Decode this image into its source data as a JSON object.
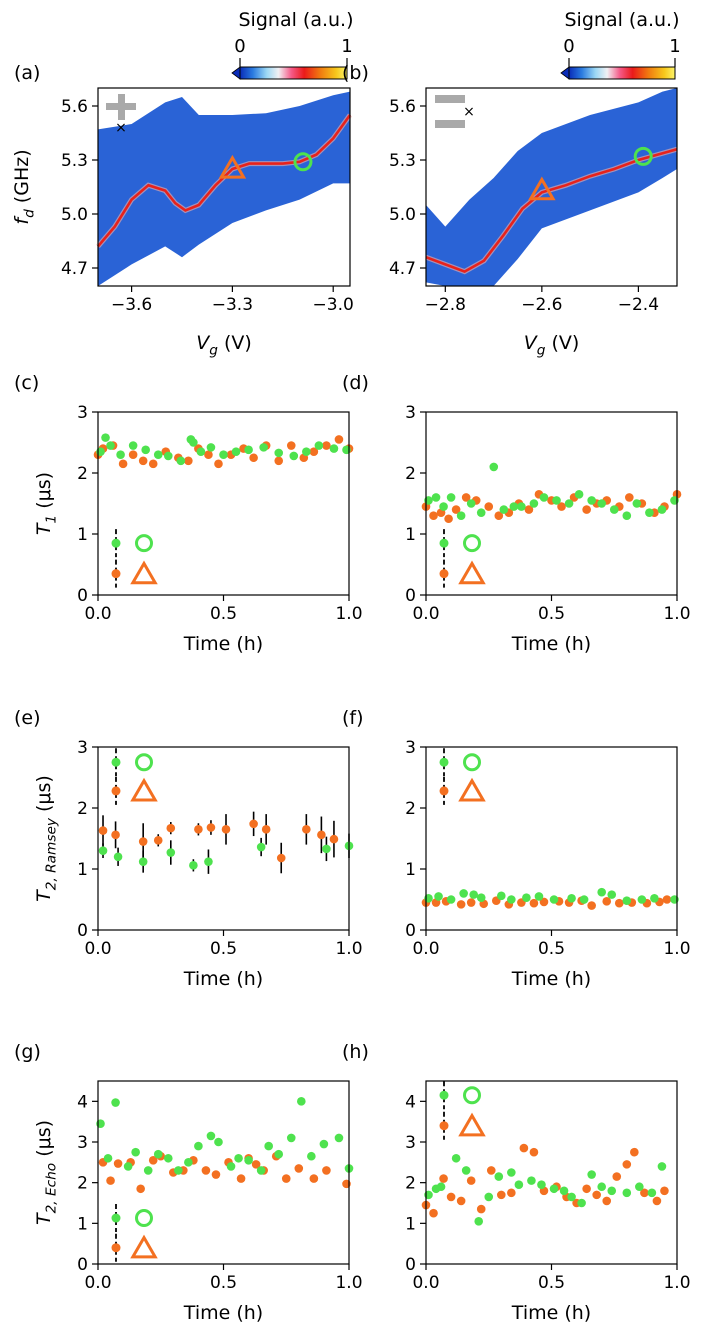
{
  "colors": {
    "green": "#4ee24e",
    "orange": "#f37021",
    "map_bg": "#2a63d6",
    "trace": "#e8221b",
    "gray": "#a9a9a9"
  },
  "colorbar": {
    "title": "Signal (a.u.)",
    "ticks": [
      "0",
      "1"
    ]
  },
  "chart_data": [
    {
      "id": "a",
      "panel_label": "(a)",
      "type": "heatmap",
      "xlabel_main": "V",
      "xlabel_sub": "g",
      "xlabel_unit": " (V)",
      "ylabel_main": "f",
      "ylabel_sub": "d",
      "ylabel_unit": " (GHz)",
      "xlim": [
        -3.7,
        -2.95
      ],
      "ylim": [
        4.6,
        5.7
      ],
      "xticks": [
        -3.6,
        -3.3,
        -3.0
      ],
      "xtick_labels": [
        "−3.6",
        "−3.3",
        "−3.0"
      ],
      "yticks": [
        4.7,
        5.0,
        5.3,
        5.6
      ],
      "ytick_labels": [
        "4.7",
        "5.0",
        "5.3",
        "5.6"
      ],
      "band_x": [
        -3.7,
        -3.6,
        -3.5,
        -3.45,
        -3.4,
        -3.3,
        -3.2,
        -3.1,
        -3.0,
        -2.95
      ],
      "band_lo": [
        4.6,
        4.72,
        4.82,
        4.76,
        4.83,
        4.95,
        5.02,
        5.08,
        5.17,
        5.17
      ],
      "band_hi": [
        5.47,
        5.5,
        5.62,
        5.65,
        5.55,
        5.55,
        5.56,
        5.6,
        5.66,
        5.68
      ],
      "trace_x": [
        -3.7,
        -3.65,
        -3.6,
        -3.55,
        -3.5,
        -3.47,
        -3.44,
        -3.4,
        -3.35,
        -3.3,
        -3.25,
        -3.2,
        -3.15,
        -3.1,
        -3.05,
        -3.0,
        -2.95
      ],
      "trace_y": [
        4.82,
        4.93,
        5.08,
        5.16,
        5.13,
        5.06,
        5.02,
        5.05,
        5.16,
        5.25,
        5.28,
        5.28,
        5.28,
        5.29,
        5.33,
        5.42,
        5.55
      ],
      "triangle": [
        -3.3,
        5.25
      ],
      "circle": [
        -3.09,
        5.29
      ]
    },
    {
      "id": "b",
      "panel_label": "(b)",
      "type": "heatmap",
      "xlabel_main": "V",
      "xlabel_sub": "g",
      "xlabel_unit": " (V)",
      "xlim": [
        -2.84,
        -2.32
      ],
      "ylim": [
        4.6,
        5.7
      ],
      "xticks": [
        -2.8,
        -2.6,
        -2.4
      ],
      "xtick_labels": [
        "−2.8",
        "−2.6",
        "−2.4"
      ],
      "yticks": [
        4.7,
        5.0,
        5.3,
        5.6
      ],
      "ytick_labels": [
        "4.7",
        "5.0",
        "5.3",
        "5.6"
      ],
      "band_x": [
        -2.84,
        -2.8,
        -2.75,
        -2.7,
        -2.65,
        -2.6,
        -2.5,
        -2.4,
        -2.35,
        -2.32
      ],
      "band_lo": [
        4.62,
        4.6,
        4.6,
        4.6,
        4.75,
        4.92,
        5.02,
        5.12,
        5.2,
        5.25
      ],
      "band_hi": [
        5.05,
        4.93,
        5.08,
        5.2,
        5.35,
        5.45,
        5.55,
        5.62,
        5.68,
        5.7
      ],
      "trace_x": [
        -2.84,
        -2.8,
        -2.76,
        -2.72,
        -2.68,
        -2.64,
        -2.6,
        -2.55,
        -2.5,
        -2.45,
        -2.4,
        -2.36,
        -2.32
      ],
      "trace_y": [
        4.76,
        4.72,
        4.68,
        4.74,
        4.88,
        5.03,
        5.12,
        5.16,
        5.21,
        5.25,
        5.3,
        5.33,
        5.36
      ],
      "triangle": [
        -2.6,
        5.13
      ],
      "circle": [
        -2.39,
        5.32
      ]
    },
    {
      "id": "c",
      "panel_label": "(c)",
      "type": "scatter",
      "ylabel_main": "T",
      "ylabel_sub": "1",
      "ylabel_unit": " (μs)",
      "xlabel": "Time (h)",
      "xlim": [
        0,
        1
      ],
      "ylim": [
        0,
        3
      ],
      "xticks": [
        0,
        0.5,
        1
      ],
      "xtick_labels": [
        "0.0",
        "0.5",
        "1.0"
      ],
      "yticks": [
        0,
        1,
        2,
        3
      ],
      "ytick_labels": [
        "0",
        "1",
        "2",
        "3"
      ],
      "series": [
        {
          "name": "circle",
          "x": [
            0.01,
            0.03,
            0.05,
            0.09,
            0.14,
            0.19,
            0.24,
            0.28,
            0.33,
            0.37,
            0.38,
            0.41,
            0.45,
            0.5,
            0.55,
            0.6,
            0.66,
            0.72,
            0.78,
            0.83,
            0.88,
            0.94,
            0.99
          ],
          "y": [
            2.35,
            2.58,
            2.45,
            2.3,
            2.45,
            2.38,
            2.3,
            2.28,
            2.2,
            2.55,
            2.5,
            2.35,
            2.42,
            2.3,
            2.35,
            2.38,
            2.42,
            2.33,
            2.28,
            2.35,
            2.45,
            2.4,
            2.38
          ]
        },
        {
          "name": "triangle",
          "x": [
            0.0,
            0.02,
            0.06,
            0.1,
            0.14,
            0.18,
            0.22,
            0.27,
            0.32,
            0.36,
            0.4,
            0.44,
            0.48,
            0.53,
            0.58,
            0.62,
            0.67,
            0.72,
            0.77,
            0.82,
            0.86,
            0.91,
            0.96,
            1.0
          ],
          "y": [
            2.3,
            2.4,
            2.45,
            2.15,
            2.3,
            2.2,
            2.15,
            2.35,
            2.25,
            2.2,
            2.4,
            2.3,
            2.15,
            2.3,
            2.4,
            2.25,
            2.45,
            2.2,
            2.45,
            2.25,
            2.35,
            2.45,
            2.55,
            2.4
          ]
        }
      ],
      "legend": {
        "circle_y": 0.85,
        "triangle_y": 0.35
      }
    },
    {
      "id": "d",
      "panel_label": "(d)",
      "type": "scatter",
      "xlabel": "Time (h)",
      "xlim": [
        0,
        1
      ],
      "ylim": [
        0,
        3
      ],
      "xticks": [
        0,
        0.5,
        1
      ],
      "xtick_labels": [
        "0.0",
        "0.5",
        "1.0"
      ],
      "yticks": [
        0,
        1,
        2,
        3
      ],
      "ytick_labels": [
        "0",
        "1",
        "2",
        "3"
      ],
      "series": [
        {
          "name": "circle",
          "x": [
            0.01,
            0.04,
            0.07,
            0.1,
            0.14,
            0.18,
            0.22,
            0.27,
            0.31,
            0.35,
            0.38,
            0.43,
            0.47,
            0.52,
            0.57,
            0.61,
            0.66,
            0.7,
            0.75,
            0.8,
            0.84,
            0.89,
            0.94,
            0.99
          ],
          "y": [
            1.55,
            1.6,
            1.45,
            1.6,
            1.3,
            1.5,
            1.35,
            2.1,
            1.4,
            1.45,
            1.45,
            1.5,
            1.6,
            1.55,
            1.5,
            1.65,
            1.55,
            1.5,
            1.4,
            1.3,
            1.5,
            1.35,
            1.4,
            1.55
          ]
        },
        {
          "name": "triangle",
          "x": [
            0.0,
            0.03,
            0.06,
            0.09,
            0.12,
            0.16,
            0.2,
            0.25,
            0.29,
            0.33,
            0.37,
            0.41,
            0.45,
            0.5,
            0.54,
            0.59,
            0.64,
            0.68,
            0.72,
            0.77,
            0.81,
            0.86,
            0.91,
            0.95,
            1.0
          ],
          "y": [
            1.45,
            1.3,
            1.35,
            1.25,
            1.4,
            1.6,
            1.55,
            1.45,
            1.3,
            1.35,
            1.5,
            1.4,
            1.65,
            1.55,
            1.45,
            1.6,
            1.4,
            1.5,
            1.55,
            1.45,
            1.6,
            1.5,
            1.35,
            1.45,
            1.65
          ]
        }
      ],
      "legend": {
        "circle_y": 0.85,
        "triangle_y": 0.35
      }
    },
    {
      "id": "e",
      "panel_label": "(e)",
      "type": "scatter",
      "ylabel_main": "T",
      "ylabel_sub": "2, Ramsey",
      "ylabel_unit": " (μs)",
      "xlabel": "Time (h)",
      "xlim": [
        0,
        1
      ],
      "ylim": [
        0,
        3
      ],
      "xticks": [
        0,
        0.5,
        1
      ],
      "xtick_labels": [
        "0.0",
        "0.5",
        "1.0"
      ],
      "yticks": [
        0,
        1,
        2,
        3
      ],
      "ytick_labels": [
        "0",
        "1",
        "2",
        "3"
      ],
      "series": [
        {
          "name": "circle",
          "x": [
            0.02,
            0.08,
            0.18,
            0.29,
            0.38,
            0.44,
            0.65,
            0.91,
            1.0
          ],
          "y": [
            1.3,
            1.2,
            1.12,
            1.27,
            1.06,
            1.12,
            1.36,
            1.33,
            1.38
          ],
          "err": [
            0.12,
            0.15,
            0.18,
            0.2,
            0.1,
            0.2,
            0.15,
            0.2,
            0.2
          ]
        },
        {
          "name": "triangle",
          "x": [
            0.02,
            0.07,
            0.18,
            0.24,
            0.29,
            0.4,
            0.45,
            0.51,
            0.62,
            0.67,
            0.73,
            0.83,
            0.89,
            0.94
          ],
          "y": [
            1.63,
            1.56,
            1.45,
            1.47,
            1.67,
            1.65,
            1.68,
            1.65,
            1.74,
            1.65,
            1.18,
            1.65,
            1.56,
            1.49
          ],
          "err": [
            0.25,
            0.22,
            0.3,
            0.1,
            0.1,
            0.1,
            0.12,
            0.25,
            0.2,
            0.25,
            0.25,
            0.25,
            0.3,
            0.3
          ]
        }
      ],
      "legend": {
        "circle_y": 2.75,
        "triangle_y": 2.28
      }
    },
    {
      "id": "f",
      "panel_label": "(f)",
      "type": "scatter",
      "xlabel": "Time (h)",
      "xlim": [
        0,
        1
      ],
      "ylim": [
        0,
        3
      ],
      "xticks": [
        0,
        0.5,
        1
      ],
      "xtick_labels": [
        "0.0",
        "0.5",
        "1.0"
      ],
      "yticks": [
        0,
        1,
        2,
        3
      ],
      "ytick_labels": [
        "0",
        "1",
        "2",
        "3"
      ],
      "series": [
        {
          "name": "circle",
          "x": [
            0.01,
            0.05,
            0.1,
            0.15,
            0.19,
            0.22,
            0.3,
            0.34,
            0.4,
            0.45,
            0.51,
            0.58,
            0.63,
            0.7,
            0.74,
            0.8,
            0.86,
            0.91,
            0.99
          ],
          "y": [
            0.52,
            0.55,
            0.5,
            0.6,
            0.58,
            0.53,
            0.56,
            0.5,
            0.53,
            0.55,
            0.5,
            0.52,
            0.5,
            0.62,
            0.58,
            0.48,
            0.5,
            0.52,
            0.5
          ]
        },
        {
          "name": "triangle",
          "x": [
            0.0,
            0.04,
            0.08,
            0.14,
            0.18,
            0.23,
            0.28,
            0.33,
            0.38,
            0.43,
            0.47,
            0.53,
            0.57,
            0.62,
            0.66,
            0.72,
            0.77,
            0.82,
            0.88,
            0.93,
            0.96
          ],
          "y": [
            0.45,
            0.45,
            0.47,
            0.42,
            0.45,
            0.43,
            0.48,
            0.42,
            0.45,
            0.44,
            0.46,
            0.47,
            0.45,
            0.48,
            0.4,
            0.47,
            0.44,
            0.45,
            0.44,
            0.46,
            0.5
          ]
        }
      ],
      "legend": {
        "circle_y": 2.75,
        "triangle_y": 2.28
      }
    },
    {
      "id": "g",
      "panel_label": "(g)",
      "type": "scatter",
      "ylabel_main": "T",
      "ylabel_sub": "2, Echo",
      "ylabel_unit": " (μs)",
      "xlabel": "Time (h)",
      "xlim": [
        0,
        1
      ],
      "ylim": [
        0,
        4.5
      ],
      "xticks": [
        0,
        0.5,
        1
      ],
      "xtick_labels": [
        "0.0",
        "0.5",
        "1.0"
      ],
      "yticks": [
        0,
        1,
        2,
        3,
        4
      ],
      "ytick_labels": [
        "0",
        "1",
        "2",
        "3",
        "4"
      ],
      "series": [
        {
          "name": "circle",
          "x": [
            0.01,
            0.04,
            0.07,
            0.12,
            0.15,
            0.2,
            0.24,
            0.28,
            0.32,
            0.36,
            0.4,
            0.45,
            0.48,
            0.53,
            0.56,
            0.6,
            0.65,
            0.68,
            0.72,
            0.77,
            0.81,
            0.85,
            0.9,
            0.96,
            1.0
          ],
          "y": [
            3.45,
            2.6,
            3.97,
            2.4,
            2.75,
            2.3,
            2.7,
            2.6,
            2.3,
            2.5,
            2.9,
            3.15,
            3.0,
            2.4,
            2.6,
            2.55,
            2.3,
            2.9,
            2.7,
            3.1,
            4.0,
            2.65,
            2.95,
            3.1,
            2.35
          ]
        },
        {
          "name": "triangle",
          "x": [
            0.02,
            0.05,
            0.08,
            0.13,
            0.17,
            0.22,
            0.25,
            0.3,
            0.34,
            0.38,
            0.43,
            0.47,
            0.52,
            0.57,
            0.6,
            0.63,
            0.66,
            0.71,
            0.75,
            0.8,
            0.86,
            0.91,
            0.99
          ],
          "y": [
            2.5,
            2.05,
            2.47,
            2.5,
            1.85,
            2.55,
            2.65,
            2.25,
            2.3,
            2.55,
            2.3,
            2.2,
            2.5,
            2.1,
            2.6,
            2.45,
            2.3,
            2.65,
            2.1,
            2.35,
            2.1,
            2.3,
            1.97
          ]
        }
      ],
      "legend": {
        "circle_y": 1.13,
        "triangle_y": 0.4
      }
    },
    {
      "id": "h",
      "panel_label": "(h)",
      "type": "scatter",
      "xlabel": "Time (h)",
      "xlim": [
        0,
        1
      ],
      "ylim": [
        0,
        4.5
      ],
      "xticks": [
        0,
        0.5,
        1
      ],
      "xtick_labels": [
        "0.0",
        "0.5",
        "1.0"
      ],
      "yticks": [
        0,
        1,
        2,
        3,
        4
      ],
      "ytick_labels": [
        "0",
        "1",
        "2",
        "3",
        "4"
      ],
      "series": [
        {
          "name": "circle",
          "x": [
            0.01,
            0.04,
            0.06,
            0.12,
            0.16,
            0.21,
            0.25,
            0.29,
            0.34,
            0.37,
            0.42,
            0.46,
            0.51,
            0.55,
            0.58,
            0.62,
            0.66,
            0.7,
            0.74,
            0.8,
            0.85,
            0.9,
            0.94
          ],
          "y": [
            1.7,
            1.85,
            1.9,
            2.6,
            2.3,
            1.05,
            1.65,
            2.15,
            2.25,
            1.95,
            2.05,
            1.95,
            1.85,
            1.8,
            1.65,
            1.5,
            2.2,
            1.9,
            1.8,
            1.75,
            1.9,
            1.75,
            2.4
          ]
        },
        {
          "name": "triangle",
          "x": [
            0.0,
            0.03,
            0.07,
            0.1,
            0.14,
            0.18,
            0.22,
            0.26,
            0.3,
            0.34,
            0.39,
            0.43,
            0.47,
            0.52,
            0.56,
            0.6,
            0.64,
            0.68,
            0.72,
            0.76,
            0.8,
            0.83,
            0.87,
            0.92,
            0.95
          ],
          "y": [
            1.45,
            1.25,
            2.1,
            1.65,
            1.55,
            2.05,
            1.35,
            2.3,
            1.7,
            1.75,
            2.85,
            2.75,
            1.8,
            1.9,
            1.65,
            1.5,
            1.85,
            1.7,
            1.55,
            2.15,
            2.45,
            2.75,
            1.75,
            1.55,
            1.8
          ]
        }
      ],
      "legend": {
        "circle_y": 4.15,
        "triangle_y": 3.4
      }
    }
  ]
}
